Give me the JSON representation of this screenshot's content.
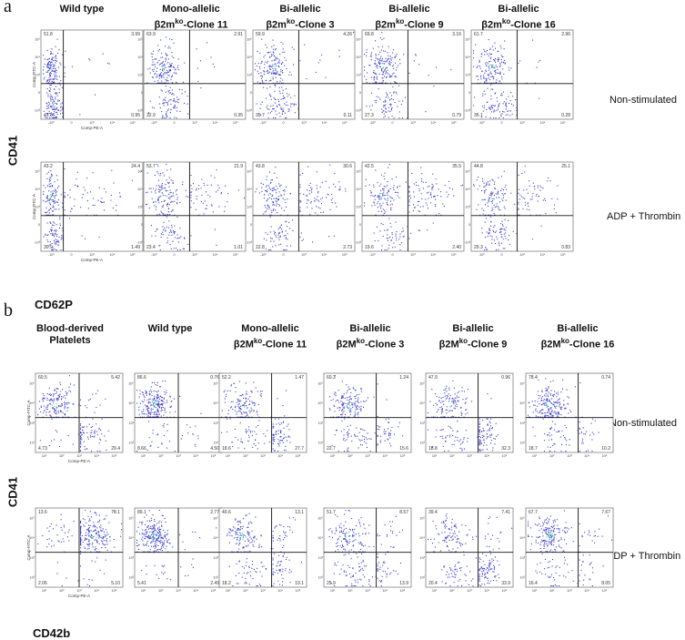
{
  "panel_a": {
    "letter": "a",
    "columns": [
      {
        "line1": "Wild type",
        "line2_pre": "",
        "line2_sup": "",
        "line2_post": ""
      },
      {
        "line1": "Mono-allelic",
        "line2_pre": "β2m",
        "line2_sup": "ko",
        "line2_post": "-Clone 11"
      },
      {
        "line1": "Bi-allelic",
        "line2_pre": "β2m",
        "line2_sup": "ko",
        "line2_post": "-Clone 3"
      },
      {
        "line1": "Bi-allelic",
        "line2_pre": "β2m",
        "line2_sup": "ko",
        "line2_post": "-Clone 9"
      },
      {
        "line1": "Bi-allelic",
        "line2_pre": "β2m",
        "line2_sup": "ko",
        "line2_post": "-Clone 16"
      }
    ],
    "rows": [
      "Non-stimulated",
      "ADP + Thrombin"
    ],
    "y_marker": "CD41",
    "x_marker": "CD62P",
    "x_axis_label": "Comp-PE-A",
    "y_axis_label": "Comp-FITC-A",
    "x_ticks": [
      "-10³",
      "0",
      "10³",
      "10⁴",
      "10⁵"
    ],
    "y_ticks": [
      "10⁵",
      "10⁴",
      "10³",
      "0",
      "-10³"
    ],
    "quadrants": [
      [
        [
          "51.8",
          "3.99",
          "43.3",
          "0.95"
        ],
        [
          "63.9",
          "2.91",
          "32.9",
          "0.35"
        ],
        [
          "59.9",
          "4.26",
          "35.7",
          "0.11"
        ],
        [
          "69.8",
          "3.16",
          "27.3",
          "0.79"
        ],
        [
          "61.7",
          "2.96",
          "35.1",
          "0.28"
        ]
      ],
      [
        [
          "43.2",
          "24.4",
          "30.9",
          "1.49"
        ],
        [
          "53.7",
          "21.9",
          "23.4",
          "1.01"
        ],
        [
          "43.8",
          "30.6",
          "22.8",
          "2.73"
        ],
        [
          "42.5",
          "35.5",
          "19.6",
          "2.40"
        ],
        [
          "44.8",
          "25.1",
          "29.3",
          "0.83"
        ]
      ]
    ]
  },
  "panel_b": {
    "letter": "b",
    "columns": [
      {
        "line1": "Blood-derived",
        "line2_pre": "Platelets",
        "line2_sup": "",
        "line2_post": ""
      },
      {
        "line1": "Wild type",
        "line2_pre": "",
        "line2_sup": "",
        "line2_post": ""
      },
      {
        "line1": "Mono-allelic",
        "line2_pre": "β2M",
        "line2_sup": "ko",
        "line2_post": "-Clone 11"
      },
      {
        "line1": "Bi-allelic",
        "line2_pre": "β2M",
        "line2_sup": "ko",
        "line2_post": "-Clone 3"
      },
      {
        "line1": "Bi-allelic",
        "line2_pre": "β2M",
        "line2_sup": "ko",
        "line2_post": "-Clone 9"
      },
      {
        "line1": "Bi-allelic",
        "line2_pre": "β2M",
        "line2_sup": "ko",
        "line2_post": "-Clone 16"
      }
    ],
    "rows": [
      "Non-stimulated",
      "ADP + Thrombin"
    ],
    "y_marker": "CD41",
    "x_marker": "CD42b",
    "x_axis_label": "Comp-PE-A",
    "y_axis_label": "Comp-FITC-A",
    "x_ticks": [
      "10¹",
      "10²",
      "10³",
      "10⁴",
      "10⁵"
    ],
    "y_ticks": [
      "10⁵",
      "10⁴",
      "10³",
      "10²"
    ],
    "quadrants": [
      [
        [
          "60.5",
          "5.42",
          "4.73",
          "29.4"
        ],
        [
          "86.6",
          "0.76",
          "8.66",
          "4.50"
        ],
        [
          "52.2",
          "1.47",
          "18.6",
          "27.7"
        ],
        [
          "60.3",
          "1.24",
          "22.7",
          "15.6"
        ],
        [
          "47.9",
          "0.96",
          "18.8",
          "32.3"
        ],
        [
          "78.4",
          "0.74",
          "18.7",
          "10.2"
        ]
      ],
      [
        [
          "13.6",
          "79.1",
          "2.06",
          "5.10"
        ],
        [
          "89.1",
          "2.77",
          "5.41",
          "2.49"
        ],
        [
          "49.6",
          "13.1",
          "18.2",
          "19.1"
        ],
        [
          "51.7",
          "8.57",
          "25.9",
          "13.9"
        ],
        [
          "39.4",
          "7.41",
          "20.4",
          "33.9"
        ],
        [
          "67.7",
          "7.67",
          "16.4",
          "8.05"
        ]
      ]
    ]
  },
  "colors": {
    "dot": "#3b3bd6",
    "dense": "#22c58a",
    "line": "#111111"
  }
}
